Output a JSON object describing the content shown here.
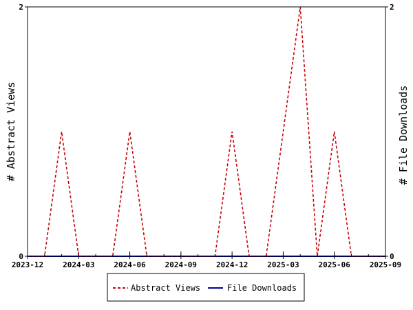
{
  "chart_data": {
    "type": "line",
    "ylabel_left": "# Abstract Views",
    "ylabel_right": "# File Downloads",
    "x_ticks": [
      "2023-12",
      "2024-03",
      "2024-06",
      "2024-09",
      "2024-12",
      "2025-03",
      "2025-06",
      "2025-09"
    ],
    "x_range": [
      "2023-12",
      "2025-09"
    ],
    "y_left": {
      "min": 0,
      "max": 2,
      "ticks": [
        "0",
        "2"
      ]
    },
    "y_right": {
      "min": 0,
      "max": 2,
      "ticks": [
        "0",
        "2"
      ]
    },
    "legend_position": "bottom",
    "x": [
      "2023-12",
      "2024-01",
      "2024-02",
      "2024-03",
      "2024-04",
      "2024-05",
      "2024-06",
      "2024-07",
      "2024-08",
      "2024-09",
      "2024-10",
      "2024-11",
      "2024-12",
      "2025-01",
      "2025-02",
      "2025-03",
      "2025-04",
      "2025-05",
      "2025-06",
      "2025-07",
      "2025-08",
      "2025-09"
    ],
    "series": [
      {
        "name": "Abstract Views",
        "color": "#cc0000",
        "dash": "dashed",
        "axis": "left",
        "values": [
          0,
          0,
          1,
          0,
          0,
          0,
          1,
          0,
          0,
          0,
          0,
          0,
          1,
          0,
          0,
          1,
          2,
          0,
          1,
          0,
          0,
          0
        ]
      },
      {
        "name": "File Downloads",
        "color": "#000099",
        "dash": "solid",
        "axis": "right",
        "values": [
          0,
          0,
          0,
          0,
          0,
          0,
          0,
          0,
          0,
          0,
          0,
          0,
          0,
          0,
          0,
          0,
          0,
          0,
          0,
          0,
          0,
          0
        ]
      }
    ]
  }
}
